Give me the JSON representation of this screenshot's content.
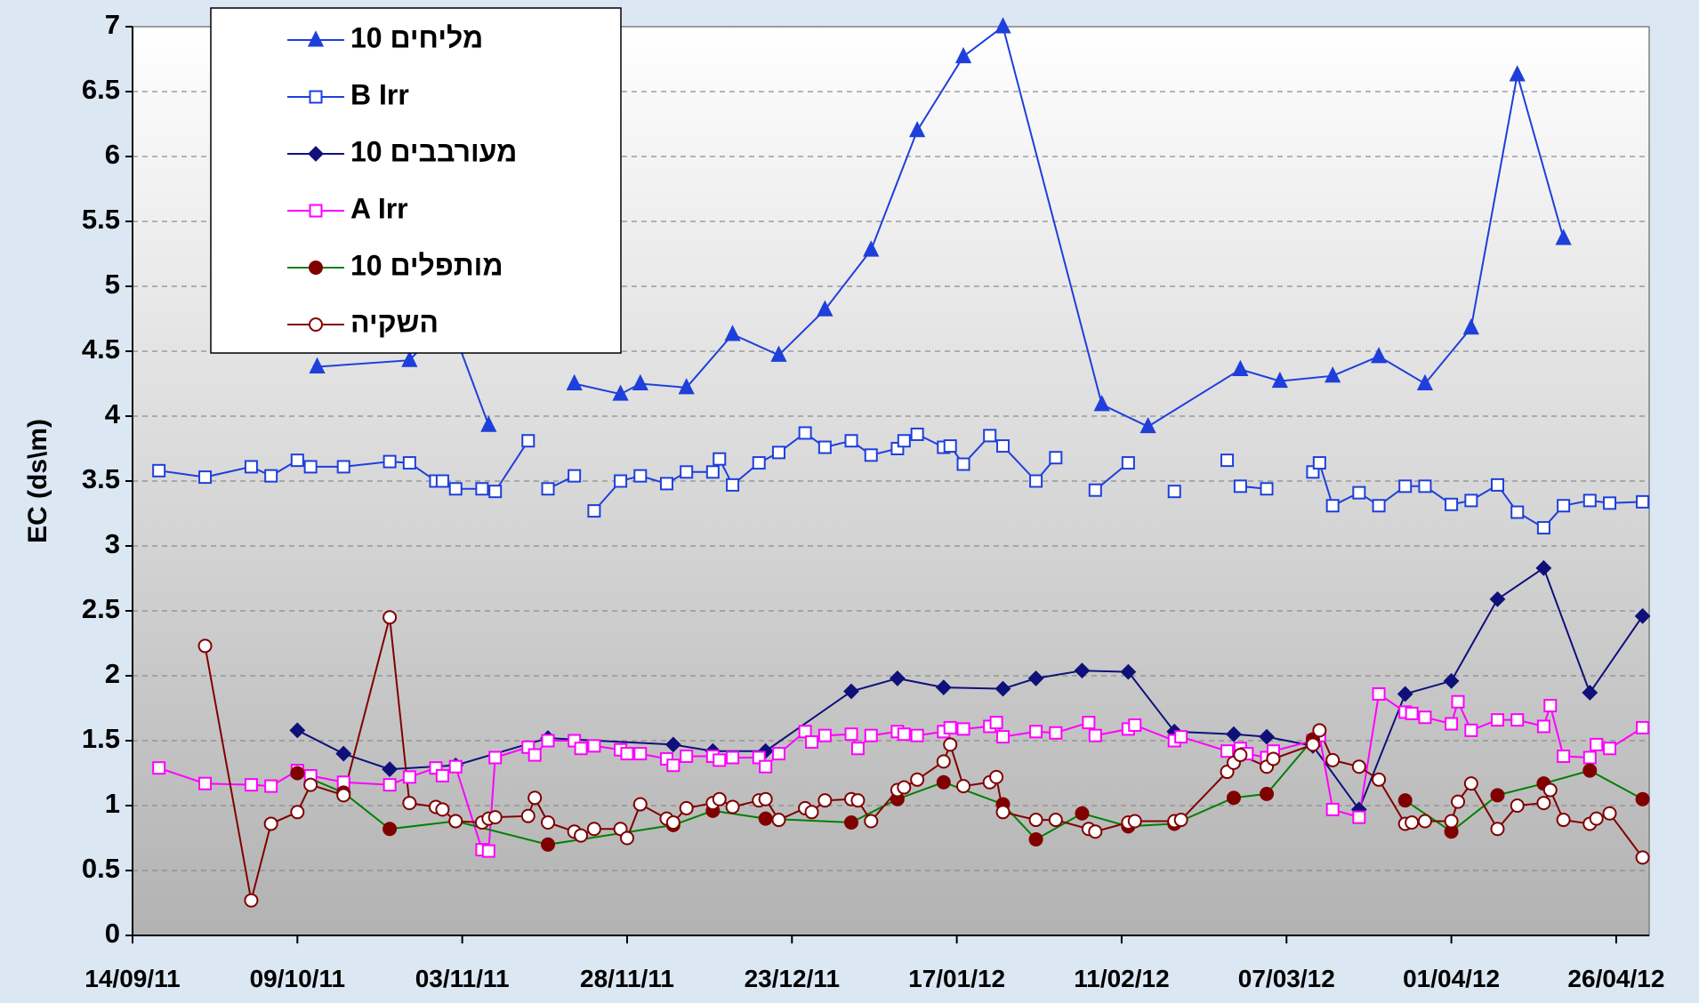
{
  "chart_data": {
    "type": "line",
    "y_label": "EC  (ds\\m)",
    "xlim": [
      "2011-09-14",
      "2012-05-01"
    ],
    "xticks": [
      {
        "value": "2011-09-14",
        "label": "14/09/11"
      },
      {
        "value": "2011-10-09",
        "label": "09/10/11"
      },
      {
        "value": "2011-11-03",
        "label": "03/11/11"
      },
      {
        "value": "2011-11-28",
        "label": "28/11/11"
      },
      {
        "value": "2011-12-23",
        "label": "23/12/11"
      },
      {
        "value": "2012-01-17",
        "label": "17/01/12"
      },
      {
        "value": "2012-02-11",
        "label": "11/02/12"
      },
      {
        "value": "2012-03-07",
        "label": "07/03/12"
      },
      {
        "value": "2012-04-01",
        "label": "01/04/12"
      },
      {
        "value": "2012-04-26",
        "label": "26/04/12"
      }
    ],
    "ylim": [
      0,
      7
    ],
    "yticks": [
      0,
      0.5,
      1,
      1.5,
      2,
      2.5,
      3,
      3.5,
      4,
      4.5,
      5,
      5.5,
      6,
      6.5,
      7
    ],
    "grid": true,
    "legend": "upper left",
    "series": [
      {
        "name": "10 מליחים",
        "color": "#1f3fdb",
        "marker": "triangle",
        "filled": true,
        "x": [
          "2011-10-12",
          "2011-10-26",
          "2011-11-01",
          "2011-11-07",
          null,
          "2011-11-20",
          "2011-11-27",
          "2011-11-30",
          "2011-12-07",
          "2011-12-14",
          "2011-12-21",
          "2011-12-28",
          "2012-01-04",
          "2012-01-11",
          "2012-01-18",
          "2012-01-24",
          "2012-02-08",
          "2012-02-15",
          "2012-02-29",
          "2012-03-06",
          "2012-03-14",
          "2012-03-21",
          "2012-03-28",
          "2012-04-04",
          "2012-04-11",
          "2012-04-18"
        ],
        "values": [
          4.38,
          4.43,
          4.75,
          3.93,
          null,
          4.25,
          4.17,
          4.25,
          4.22,
          4.63,
          4.47,
          4.82,
          5.28,
          6.2,
          6.77,
          7,
          4.09,
          3.92,
          4.36,
          4.27,
          4.31,
          4.46,
          4.25,
          4.68,
          6.63,
          5.37
        ]
      },
      {
        "name": "B Irr",
        "color": "#1f3fdb",
        "marker": "square",
        "filled": false,
        "x": [
          "2011-09-18",
          "2011-09-25",
          "2011-10-02",
          "2011-10-05",
          "2011-10-09",
          "2011-10-11",
          "2011-10-16",
          "2011-10-23",
          "2011-10-26",
          "2011-10-30",
          "2011-10-31",
          "2011-11-02",
          "2011-11-06",
          "2011-11-08",
          "2011-11-13",
          null,
          "2011-11-16",
          "2011-11-20",
          null,
          "2011-11-23",
          "2011-11-27",
          "2011-11-30",
          "2011-12-04",
          "2011-12-07",
          "2011-12-11",
          "2011-12-12",
          "2011-12-14",
          "2011-12-18",
          "2011-12-21",
          "2011-12-25",
          "2011-12-28",
          "2012-01-01",
          "2012-01-04",
          "2012-01-08",
          "2012-01-09",
          "2012-01-11",
          "2012-01-15",
          "2012-01-16",
          "2012-01-18",
          "2012-01-22",
          "2012-01-24",
          "2012-01-29",
          "2012-02-01",
          null,
          "2012-02-07",
          "2012-02-12",
          null,
          "2012-02-19",
          null,
          "2012-02-27",
          null,
          "2012-02-29",
          "2012-03-04",
          null,
          "2012-03-11",
          "2012-03-12",
          "2012-03-14",
          "2012-03-18",
          "2012-03-21",
          "2012-03-25",
          "2012-03-28",
          "2012-04-01",
          "2012-04-04",
          "2012-04-08",
          "2012-04-11",
          "2012-04-15",
          "2012-04-18",
          "2012-04-22",
          "2012-04-25",
          "2012-04-30"
        ],
        "values": [
          3.58,
          3.53,
          3.61,
          3.54,
          3.66,
          3.61,
          3.61,
          3.65,
          3.64,
          3.5,
          3.5,
          3.44,
          3.44,
          3.42,
          3.81,
          null,
          3.44,
          3.54,
          null,
          3.27,
          3.5,
          3.54,
          3.48,
          3.57,
          3.57,
          3.67,
          3.47,
          3.64,
          3.72,
          3.87,
          3.76,
          3.81,
          3.7,
          3.75,
          3.81,
          3.86,
          3.76,
          3.77,
          3.63,
          3.85,
          3.77,
          3.5,
          3.68,
          null,
          3.43,
          3.64,
          null,
          3.42,
          null,
          3.66,
          null,
          3.46,
          3.44,
          null,
          3.57,
          3.64,
          3.31,
          3.41,
          3.31,
          3.46,
          3.46,
          3.32,
          3.35,
          3.47,
          3.26,
          3.14,
          3.31,
          3.35,
          3.33,
          3.34
        ]
      },
      {
        "name": "10 מעורבבים",
        "color": "#10107a",
        "marker": "diamond",
        "filled": true,
        "x": [
          "2011-10-09",
          "2011-10-16",
          "2011-10-23",
          "2011-11-02",
          "2011-11-16",
          "2011-12-05",
          "2011-12-11",
          "2011-12-19",
          "2012-01-01",
          "2012-01-08",
          "2012-01-15",
          "2012-01-24",
          "2012-01-29",
          "2012-02-05",
          "2012-02-12",
          "2012-02-19",
          "2012-02-28",
          "2012-03-04",
          "2012-03-11",
          "2012-03-18",
          "2012-03-25",
          "2012-04-01",
          "2012-04-08",
          "2012-04-15",
          "2012-04-22",
          "2012-04-30"
        ],
        "values": [
          1.58,
          1.4,
          1.28,
          1.31,
          1.52,
          1.47,
          1.42,
          1.42,
          1.88,
          1.98,
          1.91,
          1.9,
          1.98,
          2.04,
          2.03,
          1.57,
          1.55,
          1.53,
          1.46,
          0.97,
          1.86,
          1.96,
          2.59,
          2.83,
          1.87,
          2.46
        ]
      },
      {
        "name": "A Irr",
        "color": "#ff00ff",
        "marker": "square",
        "filled": false,
        "x": [
          "2011-09-18",
          "2011-09-25",
          "2011-10-02",
          "2011-10-05",
          "2011-10-09",
          "2011-10-11",
          "2011-10-16",
          "2011-10-23",
          "2011-10-26",
          "2011-10-30",
          "2011-10-31",
          "2011-11-02",
          "2011-11-06",
          "2011-11-07",
          "2011-11-08",
          "2011-11-13",
          "2011-11-14",
          "2011-11-16",
          "2011-11-20",
          "2011-11-21",
          "2011-11-23",
          "2011-11-27",
          "2011-11-28",
          "2011-11-30",
          "2011-12-04",
          "2011-12-05",
          "2011-12-07",
          "2011-12-11",
          "2011-12-12",
          "2011-12-14",
          "2011-12-18",
          "2011-12-19",
          "2011-12-21",
          "2011-12-25",
          "2011-12-26",
          "2011-12-28",
          "2012-01-01",
          "2012-01-02",
          "2012-01-04",
          "2012-01-08",
          "2012-01-09",
          "2012-01-11",
          "2012-01-15",
          "2012-01-16",
          "2012-01-18",
          "2012-01-22",
          "2012-01-23",
          "2012-01-24",
          "2012-01-29",
          "2012-02-01",
          "2012-02-06",
          "2012-02-07",
          "2012-02-12",
          "2012-02-13",
          "2012-02-19",
          "2012-02-20",
          "2012-02-27",
          "2012-02-29",
          "2012-03-01",
          "2012-03-04",
          "2012-03-05",
          "2012-03-11",
          "2012-03-12",
          "2012-03-14",
          "2012-03-18",
          "2012-03-21",
          "2012-03-25",
          "2012-03-26",
          "2012-03-28",
          "2012-04-01",
          "2012-04-02",
          "2012-04-04",
          "2012-04-08",
          "2012-04-11",
          "2012-04-15",
          "2012-04-16",
          "2012-04-18",
          "2012-04-22",
          "2012-04-23",
          "2012-04-25",
          "2012-04-30"
        ],
        "values": [
          1.29,
          1.17,
          1.16,
          1.15,
          1.27,
          1.23,
          1.18,
          1.16,
          1.22,
          1.29,
          1.23,
          1.3,
          0.66,
          0.65,
          1.37,
          1.45,
          1.39,
          1.5,
          1.5,
          1.44,
          1.46,
          1.43,
          1.4,
          1.4,
          1.36,
          1.31,
          1.38,
          1.38,
          1.35,
          1.37,
          1.37,
          1.3,
          1.4,
          1.57,
          1.49,
          1.54,
          1.55,
          1.44,
          1.54,
          1.57,
          1.55,
          1.54,
          1.57,
          1.6,
          1.59,
          1.61,
          1.64,
          1.53,
          1.57,
          1.56,
          1.64,
          1.54,
          1.59,
          1.62,
          1.5,
          1.53,
          1.42,
          1.44,
          1.4,
          1.37,
          1.42,
          1.5,
          1.54,
          0.97,
          0.91,
          1.86,
          1.72,
          1.71,
          1.68,
          1.63,
          1.8,
          1.58,
          1.66,
          1.66,
          1.61,
          1.77,
          1.38,
          1.37,
          1.47,
          1.44,
          1.6
        ]
      },
      {
        "name": "10 מותפלים",
        "color": "#008000",
        "marker_color": "#800000",
        "marker": "circle",
        "filled": true,
        "x": [
          "2011-10-09",
          "2011-10-16",
          "2011-10-23",
          "2011-11-02",
          "2011-11-16",
          "2011-12-05",
          "2011-12-11",
          "2011-12-19",
          "2012-01-01",
          "2012-01-08",
          "2012-01-15",
          "2012-01-24",
          "2012-01-29",
          "2012-02-05",
          "2012-02-12",
          "2012-02-19",
          "2012-02-28",
          "2012-03-04",
          "2012-03-11",
          null,
          "2012-03-25",
          "2012-04-01",
          "2012-04-08",
          "2012-04-15",
          "2012-04-22",
          "2012-04-30"
        ],
        "values": [
          1.25,
          1.1,
          0.82,
          0.88,
          0.7,
          0.85,
          0.96,
          0.9,
          0.87,
          1.05,
          1.18,
          1.01,
          0.74,
          0.94,
          0.84,
          0.86,
          1.06,
          1.09,
          1.51,
          null,
          1.04,
          0.8,
          1.08,
          1.17,
          1.27,
          1.05
        ]
      },
      {
        "name": "השקיה",
        "color": "#800000",
        "marker": "circle",
        "filled": false,
        "x": [
          "2011-09-25",
          "2011-10-02",
          "2011-10-05",
          "2011-10-09",
          "2011-10-11",
          "2011-10-16",
          "2011-10-23",
          "2011-10-26",
          "2011-10-30",
          "2011-10-31",
          "2011-11-02",
          "2011-11-06",
          "2011-11-07",
          "2011-11-08",
          "2011-11-13",
          "2011-11-14",
          "2011-11-16",
          "2011-11-20",
          "2011-11-21",
          "2011-11-23",
          "2011-11-27",
          "2011-11-28",
          "2011-11-30",
          "2011-12-04",
          "2011-12-05",
          "2011-12-07",
          "2011-12-11",
          "2011-12-12",
          "2011-12-14",
          "2011-12-18",
          "2011-12-19",
          "2011-12-21",
          "2011-12-25",
          "2011-12-26",
          "2011-12-28",
          "2012-01-01",
          "2012-01-02",
          "2012-01-04",
          "2012-01-08",
          "2012-01-09",
          "2012-01-11",
          "2012-01-15",
          "2012-01-16",
          "2012-01-18",
          "2012-01-22",
          "2012-01-23",
          "2012-01-24",
          "2012-01-29",
          "2012-02-01",
          "2012-02-06",
          "2012-02-07",
          "2012-02-12",
          "2012-02-13",
          "2012-02-19",
          "2012-02-20",
          "2012-02-27",
          "2012-02-28",
          "2012-02-29",
          "2012-03-04",
          "2012-03-05",
          "2012-03-11",
          "2012-03-12",
          "2012-03-14",
          "2012-03-18",
          "2012-03-21",
          "2012-03-25",
          "2012-03-26",
          "2012-03-28",
          "2012-04-01",
          "2012-04-02",
          "2012-04-04",
          "2012-04-08",
          "2012-04-11",
          "2012-04-15",
          "2012-04-16",
          "2012-04-18",
          "2012-04-22",
          "2012-04-23",
          "2012-04-25",
          "2012-04-30"
        ],
        "values": [
          2.23,
          0.27,
          0.86,
          0.95,
          1.16,
          1.08,
          2.45,
          1.02,
          0.99,
          0.97,
          0.88,
          0.87,
          0.9,
          0.91,
          0.92,
          1.06,
          0.87,
          0.8,
          0.77,
          0.82,
          0.82,
          0.75,
          1.01,
          0.9,
          0.87,
          0.98,
          1.02,
          1.05,
          0.99,
          1.04,
          1.05,
          0.89,
          0.98,
          0.95,
          1.04,
          1.05,
          1.04,
          0.88,
          1.12,
          1.14,
          1.2,
          1.34,
          1.47,
          1.15,
          1.18,
          1.22,
          0.95,
          0.89,
          0.89,
          0.82,
          0.8,
          0.87,
          0.88,
          0.88,
          0.89,
          1.26,
          1.33,
          1.39,
          1.3,
          1.36,
          1.47,
          1.58,
          1.35,
          1.3,
          1.2,
          0.86,
          0.87,
          0.88,
          0.88,
          1.03,
          1.17,
          0.82,
          1,
          1.02,
          1.12,
          0.89,
          0.86,
          0.9,
          0.94,
          0.6
        ]
      }
    ]
  }
}
